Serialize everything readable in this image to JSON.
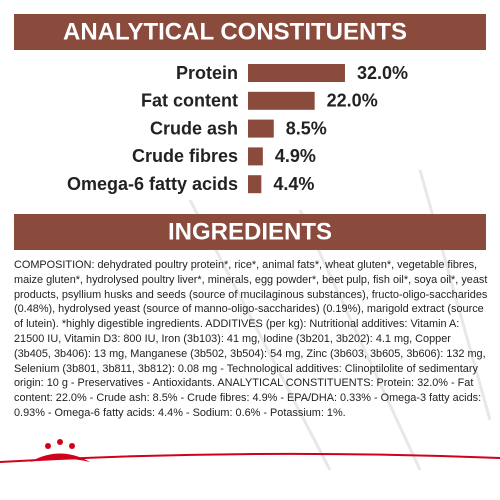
{
  "chart_data": {
    "type": "bar",
    "title": "ANALYTICAL CONSTITUENTS",
    "categories": [
      "Protein",
      "Fat content",
      "Crude ash",
      "Crude fibres",
      "Omega-6 fatty acids"
    ],
    "values": [
      32.0,
      22.0,
      8.5,
      4.9,
      4.4
    ],
    "value_labels": [
      "32.0%",
      "22.0%",
      "8.5%",
      "4.9%",
      "4.4%"
    ],
    "color": "#8a4a3c"
  },
  "ingredients": {
    "title": "INGREDIENTS",
    "text": "COMPOSITION: dehydrated poultry protein*, rice*, animal fats*, wheat gluten*, vegetable fibres, maize gluten*, hydrolysed poultry liver*, minerals, egg powder*, beet pulp, fish oil*, soya oil*, yeast products, psyllium husks and seeds (source of mucilaginous substances), fructo-oligo-saccharides (0.48%), hydrolysed yeast (source of manno-oligo-saccharides) (0.19%), marigold extract (source of lutein). *highly digestible ingredients. ADDITIVES (per kg): Nutritional additives: Vitamin A: 21500 IU, Vitamin D3: 800 IU, Iron (3b103): 41 mg, Iodine (3b201, 3b202): 4.1 mg, Copper (3b405, 3b406): 13 mg, Manganese (3b502, 3b504): 54 mg, Zinc (3b603, 3b605, 3b606): 132 mg, Selenium (3b801, 3b811, 3b812): 0.08 mg - Technological additives: Clinoptilolite of sedimentary origin: 10 g - Preservatives - Antioxidants. ANALYTICAL CONSTITUENTS: Protein: 32.0% - Fat content: 22.0% - Crude ash: 8.5% - Crude fibres: 4.9% - EPA/DHA: 0.33% - Omega-3 fatty acids: 0.93% - Omega-6 fatty acids: 4.4% - Sodium: 0.6% - Potassium: 1%."
  }
}
